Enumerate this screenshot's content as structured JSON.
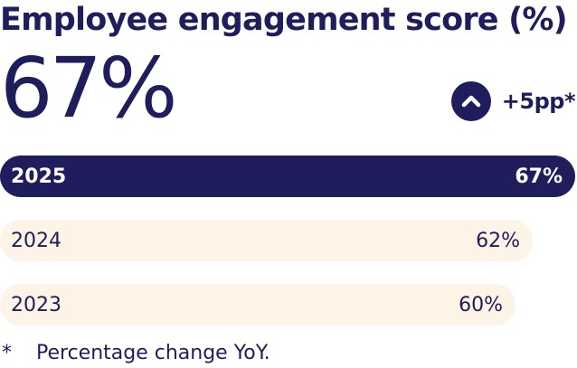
{
  "header": {
    "title": "Employee engagement score (%)",
    "value": "67%",
    "change": "+5pp*",
    "change_icon": "chevron-up-icon"
  },
  "footnote": {
    "marker": "*",
    "text": "Percentage change YoY."
  },
  "colors": {
    "primary": "#1f1d5c",
    "past_bar": "#fdf3e6",
    "background": "#ffffff"
  },
  "chart_data": {
    "type": "bar",
    "orientation": "horizontal",
    "title": "Employee engagement score (%)",
    "categories": [
      "2025",
      "2024",
      "2023"
    ],
    "values": [
      67,
      62,
      60
    ],
    "value_labels": [
      "67%",
      "62%",
      "60%"
    ],
    "highlighted": "2025",
    "xlim": [
      0,
      67
    ]
  }
}
